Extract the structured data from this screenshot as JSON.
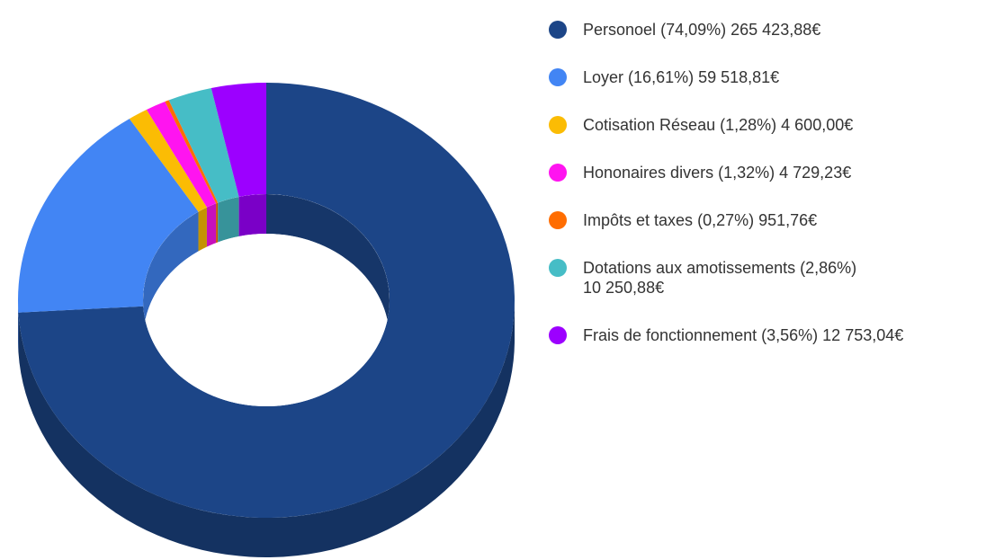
{
  "chart_data": {
    "type": "donut3d",
    "categories": [
      "Personoel",
      "Loyer",
      "Cotisation Réseau",
      "Hononaires divers",
      "Impôts et taxes",
      "Dotations aux amotissements",
      "Frais de fonctionnement"
    ],
    "values": [
      265423.88,
      59518.81,
      4600.0,
      4729.23,
      951.76,
      10250.88,
      12753.04
    ],
    "value_labels": [
      "265 423,88€",
      "59 518,81€",
      "4 600,00€",
      "4 729,23€",
      "951,76€",
      "10 250,88€",
      "12 753,04€"
    ],
    "shares": [
      74.09,
      16.61,
      1.28,
      1.32,
      0.27,
      2.86,
      3.56
    ],
    "share_labels": [
      "(74,09%)",
      "(16,61%)",
      "(1,28%)",
      "(1,32%)",
      "(0,27%)",
      "(2,86%)",
      "(3,56%)"
    ],
    "colors": [
      "#1c4587",
      "#4285f4",
      "#fbbc04",
      "#ff14f0",
      "#ff6d01",
      "#46bdc6",
      "#9c00ff"
    ],
    "legend": "right"
  }
}
